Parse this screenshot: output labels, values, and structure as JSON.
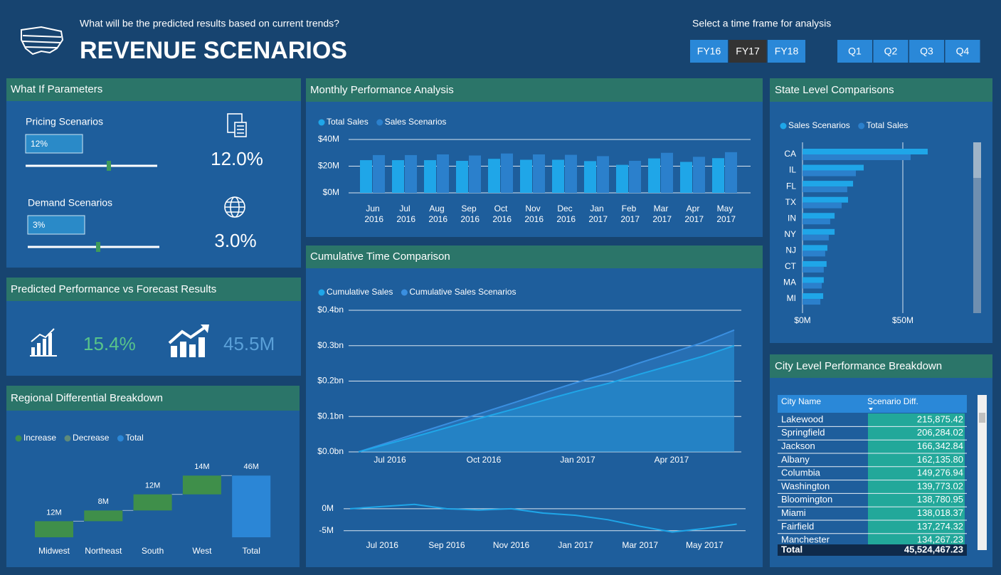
{
  "header": {
    "question": "What will be the predicted results based on current trends?",
    "title": "REVENUE SCENARIOS",
    "timeframe_label": "Select a time frame for analysis",
    "fiscal_years": [
      "FY16",
      "FY17",
      "FY18"
    ],
    "selected_fiscal_year": "FY17",
    "quarters": [
      "Q1",
      "Q2",
      "Q3",
      "Q4"
    ]
  },
  "what_if": {
    "title": "What If Parameters",
    "pricing": {
      "label": "Pricing Scenarios",
      "input": "12%",
      "result": "12.0%"
    },
    "demand": {
      "label": "Demand Scenarios",
      "input": "3%",
      "result": "3.0%"
    }
  },
  "forecast": {
    "title": "Predicted Performance vs Forecast Results",
    "growth": "15.4%",
    "difference": "45.5M"
  },
  "city_table": {
    "title": "City Level Performance Breakdown",
    "columns": [
      "City Name",
      "Scenario Diff."
    ],
    "rows": [
      [
        "Lakewood",
        "215,875.42"
      ],
      [
        "Springfield",
        "206,284.02"
      ],
      [
        "Jackson",
        "166,342.84"
      ],
      [
        "Albany",
        "162,135.80"
      ],
      [
        "Columbia",
        "149,276.94"
      ],
      [
        "Washington",
        "139,773.02"
      ],
      [
        "Bloomington",
        "138,780.95"
      ],
      [
        "Miami",
        "138,018.37"
      ],
      [
        "Fairfield",
        "137,274.32"
      ],
      [
        "Manchester",
        "134,267.23"
      ]
    ],
    "total": [
      "Total",
      "45,524,467.23"
    ]
  },
  "chart_data": [
    {
      "type": "waterfall",
      "title": "Regional Differential Breakdown",
      "categories": [
        "Midwest",
        "Northeast",
        "South",
        "West",
        "Total"
      ],
      "values": [
        12,
        8,
        12,
        14,
        46
      ],
      "value_labels": [
        "12M",
        "8M",
        "12M",
        "14M",
        "46M"
      ],
      "kinds": [
        "Increase",
        "Increase",
        "Increase",
        "Increase",
        "Total"
      ],
      "series": [
        {
          "name": "Increase",
          "color": "#3f8f4a"
        },
        {
          "name": "Decrease",
          "color": "#5e8a7a"
        },
        {
          "name": "Total",
          "color": "#2b86d6"
        }
      ],
      "ylim": [
        0,
        52
      ]
    },
    {
      "type": "bar",
      "title": "Monthly Performance Analysis",
      "categories": [
        "Jun 2016",
        "Jul 2016",
        "Aug 2016",
        "Sep 2016",
        "Oct 2016",
        "Nov 2016",
        "Dec 2016",
        "Jan 2017",
        "Feb 2017",
        "Mar 2017",
        "Apr 2017",
        "May 2017"
      ],
      "series": [
        {
          "name": "Total Sales",
          "color": "#1fa6e8",
          "values": [
            24.5,
            24.5,
            24.5,
            24,
            25.5,
            24.8,
            24.8,
            23.8,
            21,
            25.8,
            23.2,
            26
          ]
        },
        {
          "name": "Sales Scenarios",
          "color": "#2b80cc",
          "values": [
            28.3,
            28.3,
            28.8,
            28,
            29.5,
            28.8,
            28.5,
            27.5,
            24,
            30,
            27,
            30.5
          ]
        }
      ],
      "ylim": [
        0,
        40
      ],
      "yticks": [
        {
          "value": 0,
          "label": "$0M"
        },
        {
          "value": 20,
          "label": "$20M"
        },
        {
          "value": 40,
          "label": "$40M"
        }
      ],
      "grid": true
    },
    {
      "type": "area",
      "title": "Cumulative Time Comparison",
      "x": [
        "Jun 2016",
        "Jul 2016",
        "Aug 2016",
        "Sep 2016",
        "Oct 2016",
        "Nov 2016",
        "Dec 2016",
        "Jan 2017",
        "Feb 2017",
        "Mar 2017",
        "Apr 2017",
        "May 2017",
        "Jun 2017"
      ],
      "series": [
        {
          "name": "Cumulative Sales",
          "color": "#1fa6e8",
          "values": [
            0,
            0.024,
            0.048,
            0.073,
            0.098,
            0.122,
            0.148,
            0.172,
            0.194,
            0.22,
            0.245,
            0.27,
            0.3
          ]
        },
        {
          "name": "Cumulative Sales Scenarios",
          "color": "#3a8fe0",
          "values": [
            0,
            0.028,
            0.056,
            0.084,
            0.112,
            0.14,
            0.169,
            0.197,
            0.222,
            0.252,
            0.28,
            0.309,
            0.344
          ]
        }
      ],
      "ylim": [
        0,
        0.4
      ],
      "yticks": [
        {
          "value": 0,
          "label": "$0.0bn"
        },
        {
          "value": 0.1,
          "label": "$0.1bn"
        },
        {
          "value": 0.2,
          "label": "$0.2bn"
        },
        {
          "value": 0.3,
          "label": "$0.3bn"
        },
        {
          "value": 0.4,
          "label": "$0.4bn"
        }
      ],
      "xticks": [
        "Jul 2016",
        "Oct 2016",
        "Jan 2017",
        "Apr 2017"
      ],
      "grid": true
    },
    {
      "type": "line",
      "x": [
        "Jun 2016",
        "Jul 2016",
        "Aug 2016",
        "Sep 2016",
        "Oct 2016",
        "Nov 2016",
        "Dec 2016",
        "Jan 2017",
        "Feb 2017",
        "Mar 2017",
        "Apr 2017",
        "May 2017",
        "Jun 2017"
      ],
      "color": "#1fa6e8",
      "values": [
        0,
        0.5,
        1,
        0,
        -0.3,
        0,
        -1,
        -1.5,
        -2.5,
        -4,
        -5.3,
        -4.5,
        -3.5
      ],
      "ylim": [
        -6.5,
        1.6
      ],
      "yticks": [
        {
          "value": 0,
          "label": "0M"
        },
        {
          "value": -5,
          "label": "-5M"
        }
      ],
      "xticks": [
        "Jul 2016",
        "Sep 2016",
        "Nov 2016",
        "Jan 2017",
        "Mar 2017",
        "May 2017"
      ],
      "grid": true
    },
    {
      "type": "hbar",
      "title": "State Level Comparisons",
      "categories": [
        "CA",
        "IL",
        "FL",
        "TX",
        "IN",
        "NY",
        "NJ",
        "CT",
        "MA",
        "MI"
      ],
      "series": [
        {
          "name": "Sales Scenarios",
          "color": "#1fa6e8",
          "values": [
            62.4,
            30.5,
            25.2,
            22.7,
            16,
            16,
            12.4,
            12,
            10.6,
            10.3
          ]
        },
        {
          "name": "Total Sales",
          "color": "#2b80cc",
          "values": [
            53.9,
            26.6,
            22.3,
            19.5,
            13.8,
            13.1,
            11.3,
            10.6,
            9.6,
            8.9
          ]
        }
      ],
      "xlim": [
        0,
        84
      ],
      "xticks": [
        {
          "value": 0,
          "label": "$0M"
        },
        {
          "value": 50,
          "label": "$50M"
        }
      ],
      "grid": true
    }
  ]
}
